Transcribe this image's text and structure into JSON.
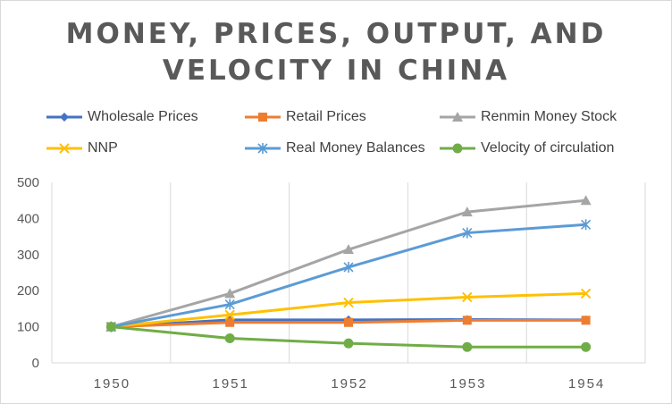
{
  "chart_data": {
    "type": "line",
    "title_lines": [
      "MONEY, PRICES, OUTPUT, AND",
      "VELOCITY IN CHINA"
    ],
    "xlabel": "",
    "ylabel": "",
    "categories": [
      "1950",
      "1951",
      "1952",
      "1953",
      "1954"
    ],
    "ylim": [
      0,
      500
    ],
    "yticks": [
      0,
      100,
      200,
      300,
      400,
      500
    ],
    "grid": "vertical",
    "legend_position": "top",
    "series": [
      {
        "name": "Wholesale Prices",
        "color": "#4472c4",
        "marker": "diamond",
        "values": [
          100,
          119,
          119,
          120,
          119
        ]
      },
      {
        "name": "Retail Prices",
        "color": "#ed7d31",
        "marker": "square",
        "values": [
          100,
          112,
          112,
          118,
          118
        ]
      },
      {
        "name": "Renmin Money Stock",
        "color": "#a5a5a5",
        "marker": "triangle",
        "values": [
          100,
          192,
          314,
          418,
          450
        ]
      },
      {
        "name": "NNP",
        "color": "#ffc000",
        "marker": "x",
        "values": [
          100,
          133,
          167,
          182,
          192
        ]
      },
      {
        "name": "Real Money Balances",
        "color": "#5b9bd5",
        "marker": "star",
        "values": [
          100,
          162,
          265,
          360,
          383
        ]
      },
      {
        "name": "Velocity  of circulation",
        "color": "#70ad47",
        "marker": "circle",
        "values": [
          100,
          68,
          54,
          44,
          44
        ]
      }
    ]
  }
}
